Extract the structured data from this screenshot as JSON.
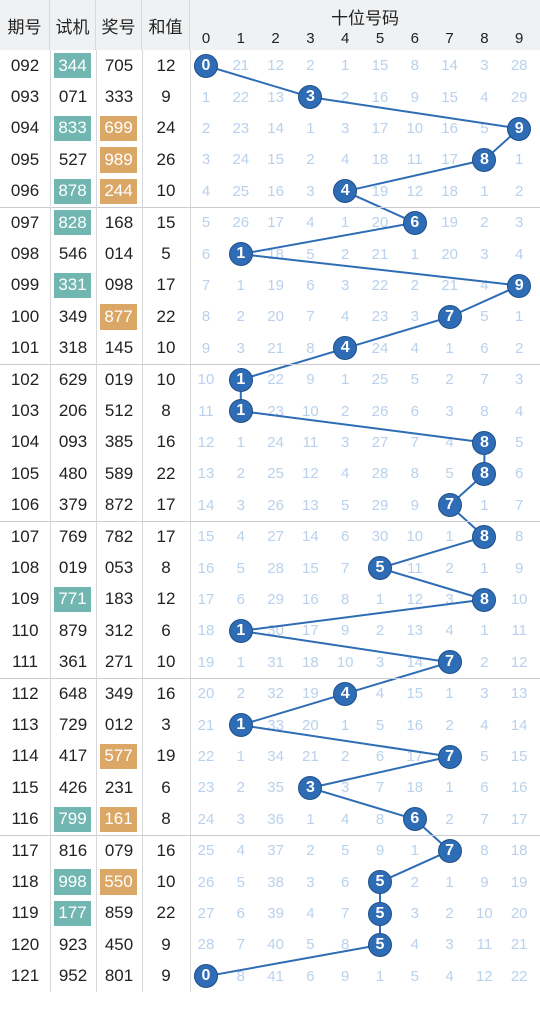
{
  "header": {
    "period": "期号",
    "trial": "试机",
    "prize": "奖号",
    "sum": "和值",
    "tens": "十位号码",
    "digits": [
      "0",
      "1",
      "2",
      "3",
      "4",
      "5",
      "6",
      "7",
      "8",
      "9"
    ]
  },
  "colors": {
    "trial_badge": "#71b6b0",
    "prize_badge": "#dba766",
    "ball": "#2e6db5",
    "miss": "#b9d1ec"
  },
  "rows": [
    {
      "period": "092",
      "trial": "344",
      "prize": "705",
      "sum": "12",
      "tb": true,
      "pb": false,
      "hit": 0,
      "miss": [
        "0",
        "21",
        "12",
        "2",
        "1",
        "15",
        "8",
        "14",
        "3",
        "28"
      ]
    },
    {
      "period": "093",
      "trial": "071",
      "prize": "333",
      "sum": "9",
      "tb": false,
      "pb": false,
      "hit": 3,
      "miss": [
        "1",
        "22",
        "13",
        "3",
        "2",
        "16",
        "9",
        "15",
        "4",
        "29"
      ]
    },
    {
      "period": "094",
      "trial": "833",
      "prize": "699",
      "sum": "24",
      "tb": true,
      "pb": true,
      "hit": 9,
      "miss": [
        "2",
        "23",
        "14",
        "1",
        "3",
        "17",
        "10",
        "16",
        "5",
        "9"
      ]
    },
    {
      "period": "095",
      "trial": "527",
      "prize": "989",
      "sum": "26",
      "tb": false,
      "pb": true,
      "hit": 8,
      "miss": [
        "3",
        "24",
        "15",
        "2",
        "4",
        "18",
        "11",
        "17",
        "8",
        "1"
      ]
    },
    {
      "period": "096",
      "trial": "878",
      "prize": "244",
      "sum": "10",
      "tb": true,
      "pb": true,
      "hit": 4,
      "miss": [
        "4",
        "25",
        "16",
        "3",
        "4",
        "19",
        "12",
        "18",
        "1",
        "2"
      ]
    },
    {
      "period": "097",
      "trial": "828",
      "prize": "168",
      "sum": "15",
      "tb": true,
      "pb": false,
      "hit": 6,
      "miss": [
        "5",
        "26",
        "17",
        "4",
        "1",
        "20",
        "6",
        "19",
        "2",
        "3"
      ]
    },
    {
      "period": "098",
      "trial": "546",
      "prize": "014",
      "sum": "5",
      "tb": false,
      "pb": false,
      "hit": 1,
      "miss": [
        "6",
        "1",
        "18",
        "5",
        "2",
        "21",
        "1",
        "20",
        "3",
        "4"
      ]
    },
    {
      "period": "099",
      "trial": "331",
      "prize": "098",
      "sum": "17",
      "tb": true,
      "pb": false,
      "hit": 9,
      "miss": [
        "7",
        "1",
        "19",
        "6",
        "3",
        "22",
        "2",
        "21",
        "4",
        "9"
      ]
    },
    {
      "period": "100",
      "trial": "349",
      "prize": "877",
      "sum": "22",
      "tb": false,
      "pb": true,
      "hit": 7,
      "miss": [
        "8",
        "2",
        "20",
        "7",
        "4",
        "23",
        "3",
        "7",
        "5",
        "1"
      ]
    },
    {
      "period": "101",
      "trial": "318",
      "prize": "145",
      "sum": "10",
      "tb": false,
      "pb": false,
      "hit": 4,
      "miss": [
        "9",
        "3",
        "21",
        "8",
        "4",
        "24",
        "4",
        "1",
        "6",
        "2"
      ]
    },
    {
      "period": "102",
      "trial": "629",
      "prize": "019",
      "sum": "10",
      "tb": false,
      "pb": false,
      "hit": 1,
      "miss": [
        "10",
        "1",
        "22",
        "9",
        "1",
        "25",
        "5",
        "2",
        "7",
        "3"
      ]
    },
    {
      "period": "103",
      "trial": "206",
      "prize": "512",
      "sum": "8",
      "tb": false,
      "pb": false,
      "hit": 1,
      "miss": [
        "11",
        "1",
        "23",
        "10",
        "2",
        "26",
        "6",
        "3",
        "8",
        "4"
      ]
    },
    {
      "period": "104",
      "trial": "093",
      "prize": "385",
      "sum": "16",
      "tb": false,
      "pb": false,
      "hit": 8,
      "miss": [
        "12",
        "1",
        "24",
        "11",
        "3",
        "27",
        "7",
        "4",
        "8",
        "5"
      ]
    },
    {
      "period": "105",
      "trial": "480",
      "prize": "589",
      "sum": "22",
      "tb": false,
      "pb": false,
      "hit": 8,
      "miss": [
        "13",
        "2",
        "25",
        "12",
        "4",
        "28",
        "8",
        "5",
        "8",
        "6"
      ]
    },
    {
      "period": "106",
      "trial": "379",
      "prize": "872",
      "sum": "17",
      "tb": false,
      "pb": false,
      "hit": 7,
      "miss": [
        "14",
        "3",
        "26",
        "13",
        "5",
        "29",
        "9",
        "7",
        "1",
        "7"
      ]
    },
    {
      "period": "107",
      "trial": "769",
      "prize": "782",
      "sum": "17",
      "tb": false,
      "pb": false,
      "hit": 8,
      "miss": [
        "15",
        "4",
        "27",
        "14",
        "6",
        "30",
        "10",
        "1",
        "8",
        "8"
      ]
    },
    {
      "period": "108",
      "trial": "019",
      "prize": "053",
      "sum": "8",
      "tb": false,
      "pb": false,
      "hit": 5,
      "miss": [
        "16",
        "5",
        "28",
        "15",
        "7",
        "5",
        "11",
        "2",
        "1",
        "9"
      ]
    },
    {
      "period": "109",
      "trial": "771",
      "prize": "183",
      "sum": "12",
      "tb": true,
      "pb": false,
      "hit": 8,
      "miss": [
        "17",
        "6",
        "29",
        "16",
        "8",
        "1",
        "12",
        "3",
        "8",
        "10"
      ]
    },
    {
      "period": "110",
      "trial": "879",
      "prize": "312",
      "sum": "6",
      "tb": false,
      "pb": false,
      "hit": 1,
      "miss": [
        "18",
        "1",
        "30",
        "17",
        "9",
        "2",
        "13",
        "4",
        "1",
        "11"
      ]
    },
    {
      "period": "111",
      "trial": "361",
      "prize": "271",
      "sum": "10",
      "tb": false,
      "pb": false,
      "hit": 7,
      "miss": [
        "19",
        "1",
        "31",
        "18",
        "10",
        "3",
        "14",
        "7",
        "2",
        "12"
      ]
    },
    {
      "period": "112",
      "trial": "648",
      "prize": "349",
      "sum": "16",
      "tb": false,
      "pb": false,
      "hit": 4,
      "miss": [
        "20",
        "2",
        "32",
        "19",
        "4",
        "4",
        "15",
        "1",
        "3",
        "13"
      ]
    },
    {
      "period": "113",
      "trial": "729",
      "prize": "012",
      "sum": "3",
      "tb": false,
      "pb": false,
      "hit": 1,
      "miss": [
        "21",
        "1",
        "33",
        "20",
        "1",
        "5",
        "16",
        "2",
        "4",
        "14"
      ]
    },
    {
      "period": "114",
      "trial": "417",
      "prize": "577",
      "sum": "19",
      "tb": false,
      "pb": true,
      "hit": 7,
      "miss": [
        "22",
        "1",
        "34",
        "21",
        "2",
        "6",
        "17",
        "7",
        "5",
        "15"
      ]
    },
    {
      "period": "115",
      "trial": "426",
      "prize": "231",
      "sum": "6",
      "tb": false,
      "pb": false,
      "hit": 3,
      "miss": [
        "23",
        "2",
        "35",
        "3",
        "3",
        "7",
        "18",
        "1",
        "6",
        "16"
      ]
    },
    {
      "period": "116",
      "trial": "799",
      "prize": "161",
      "sum": "8",
      "tb": true,
      "pb": true,
      "hit": 6,
      "miss": [
        "24",
        "3",
        "36",
        "1",
        "4",
        "8",
        "6",
        "2",
        "7",
        "17"
      ]
    },
    {
      "period": "117",
      "trial": "816",
      "prize": "079",
      "sum": "16",
      "tb": false,
      "pb": false,
      "hit": 7,
      "miss": [
        "25",
        "4",
        "37",
        "2",
        "5",
        "9",
        "1",
        "7",
        "8",
        "18"
      ]
    },
    {
      "period": "118",
      "trial": "998",
      "prize": "550",
      "sum": "10",
      "tb": true,
      "pb": true,
      "hit": 5,
      "miss": [
        "26",
        "5",
        "38",
        "3",
        "6",
        "5",
        "2",
        "1",
        "9",
        "19"
      ]
    },
    {
      "period": "119",
      "trial": "177",
      "prize": "859",
      "sum": "22",
      "tb": true,
      "pb": false,
      "hit": 5,
      "miss": [
        "27",
        "6",
        "39",
        "4",
        "7",
        "5",
        "3",
        "2",
        "10",
        "20"
      ]
    },
    {
      "period": "120",
      "trial": "923",
      "prize": "450",
      "sum": "9",
      "tb": false,
      "pb": false,
      "hit": 5,
      "miss": [
        "28",
        "7",
        "40",
        "5",
        "8",
        "5",
        "4",
        "3",
        "11",
        "21"
      ]
    },
    {
      "period": "121",
      "trial": "952",
      "prize": "801",
      "sum": "9",
      "tb": false,
      "pb": false,
      "hit": 0,
      "miss": [
        "0",
        "8",
        "41",
        "6",
        "9",
        "1",
        "5",
        "4",
        "12",
        "22"
      ]
    }
  ]
}
